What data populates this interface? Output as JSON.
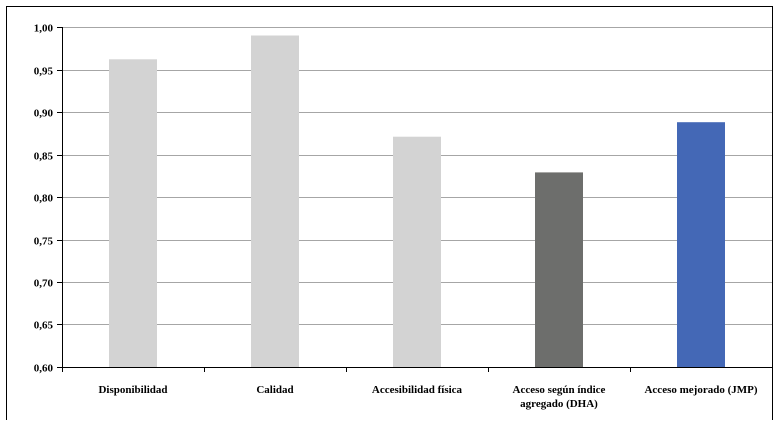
{
  "chart_data": {
    "type": "bar",
    "title": "",
    "xlabel": "",
    "ylabel": "",
    "ylim": [
      0.6,
      1.0
    ],
    "y_ticks": [
      "0,60",
      "0,65",
      "0,70",
      "0,75",
      "0,80",
      "0,85",
      "0,90",
      "0,95",
      "1,00"
    ],
    "grid": true,
    "legend": "none",
    "categories": [
      [
        "Disponibilidad"
      ],
      [
        "Calidad"
      ],
      [
        "Accesibilidad física"
      ],
      [
        "Acceso según índice",
        "agregado (DHA)"
      ],
      [
        "Acceso mejorado (JMP)"
      ]
    ],
    "values": [
      0.962,
      0.99,
      0.871,
      0.829,
      0.888
    ],
    "colors": [
      "#d3d3d3",
      "#d3d3d3",
      "#d3d3d3",
      "#6d6e6c",
      "#4468b6"
    ]
  }
}
